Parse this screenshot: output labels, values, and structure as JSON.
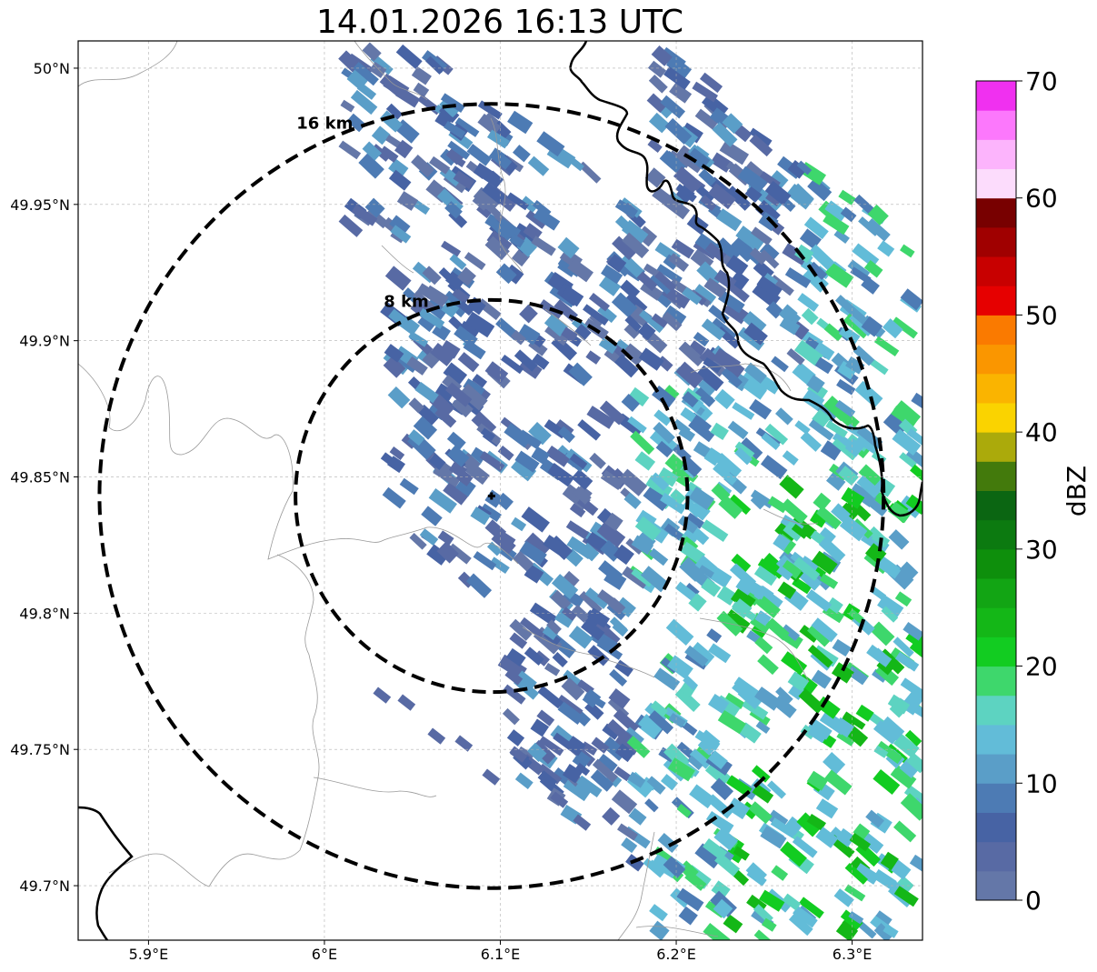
{
  "title": "14.01.2026 16:13 UTC",
  "map": {
    "lon_range": [
      5.86,
      6.34
    ],
    "lat_range": [
      49.68,
      50.01
    ],
    "x_ticks": [
      {
        "value": 5.9,
        "label": "5.9°E"
      },
      {
        "value": 6.0,
        "label": "6°E"
      },
      {
        "value": 6.1,
        "label": "6.1°E"
      },
      {
        "value": 6.2,
        "label": "6.2°E"
      },
      {
        "value": 6.3,
        "label": "6.3°E"
      }
    ],
    "y_ticks": [
      {
        "value": 50.0,
        "label": "50°N"
      },
      {
        "value": 49.95,
        "label": "49.95°N"
      },
      {
        "value": 49.9,
        "label": "49.9°N"
      },
      {
        "value": 49.85,
        "label": "49.85°N"
      },
      {
        "value": 49.8,
        "label": "49.8°N"
      },
      {
        "value": 49.75,
        "label": "49.75°N"
      },
      {
        "value": 49.7,
        "label": "49.7°N"
      }
    ],
    "radar_site": {
      "lon": 6.095,
      "lat": 49.843
    },
    "range_rings": [
      {
        "km": 8,
        "label": "8 km"
      },
      {
        "km": 16,
        "label": "16 km"
      }
    ],
    "colors": {
      "frame": "#000000",
      "grid": "#b0b0b0",
      "border_line": "#999999",
      "country_line": "#000000"
    }
  },
  "colorbar": {
    "label": "dBZ",
    "min": 0,
    "max": 70,
    "tick_values": [
      0,
      10,
      20,
      30,
      40,
      50,
      60,
      70
    ],
    "tick_labels": [
      "0",
      "10",
      "20",
      "30",
      "40",
      "50",
      "60",
      "70"
    ],
    "colors": [
      "#6477a8",
      "#586aa4",
      "#4763a4",
      "#4d7bb4",
      "#5a9ec8",
      "#62bcd8",
      "#5dd3c1",
      "#3ed76c",
      "#12cc21",
      "#14b717",
      "#12a514",
      "#0e8f0c",
      "#0c7a10",
      "#0b6612",
      "#437a0c",
      "#abaa0b",
      "#fad300",
      "#fab400",
      "#fa9600",
      "#fa7a00",
      "#e60000",
      "#c80000",
      "#a00000",
      "#780000",
      "#fcdcfc",
      "#fcb4fc",
      "#fc78fc",
      "#f030f0"
    ]
  }
}
